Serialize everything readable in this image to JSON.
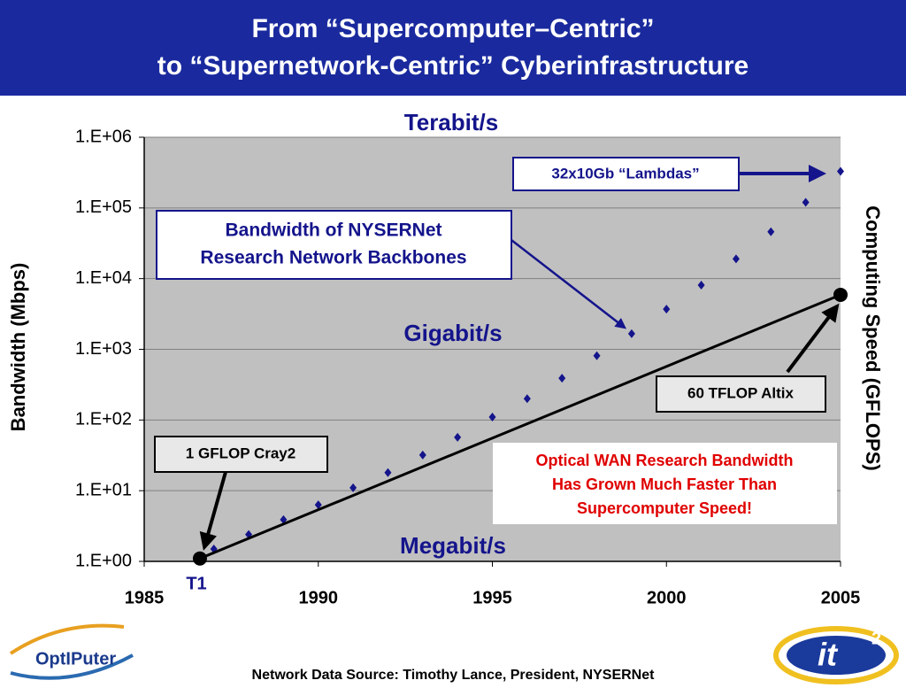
{
  "title": [
    "From “Supercomputer–Centric”",
    "to “Supernetwork-Centric” Cyberinfrastructure"
  ],
  "chart_data": {
    "type": "scatter",
    "y_label": "Bandwidth (Mbps)",
    "y2_label": "Computing Speed (GFLOPS)",
    "log_y": true,
    "grid": true,
    "xlim": [
      1985,
      2005
    ],
    "xticks": [
      1985,
      1990,
      1995,
      2000,
      2005
    ],
    "ylim": [
      1,
      1000000
    ],
    "yticks": [
      {
        "value": 1,
        "label": "1.E+00"
      },
      {
        "value": 10,
        "label": "1.E+01"
      },
      {
        "value": 100,
        "label": "1.E+02"
      },
      {
        "value": 1000,
        "label": "1.E+03"
      },
      {
        "value": 10000,
        "label": "1.E+04"
      },
      {
        "value": 100000,
        "label": "1.E+05"
      },
      {
        "value": 1000000,
        "label": "1.E+06"
      }
    ],
    "series": [
      {
        "type": "scatter",
        "color": "#14148c",
        "x": [
          1987,
          1988,
          1989,
          1990,
          1991,
          1992,
          1993,
          1994,
          1995,
          1996,
          1997,
          1998,
          1999,
          2000,
          2001,
          2002,
          2003,
          2004,
          2005
        ],
        "values": [
          1.5,
          2.4,
          3.9,
          6.3,
          11,
          18,
          32,
          57,
          110,
          200,
          390,
          810,
          1660,
          3700,
          8100,
          19000,
          46000,
          120000,
          330000
        ]
      },
      {
        "type": "line",
        "color": "#000000",
        "x": [
          1986.6,
          2005
        ],
        "values": [
          1.1,
          5900
        ]
      }
    ],
    "zone_labels": [
      "Terabit/s",
      "Gigabit/s",
      "Megabit/s",
      "T1"
    ],
    "annotations": {
      "lambdas": "32x10Gb “Lambdas”",
      "nysernet": [
        "Bandwidth of NYSERNet",
        "Research Network Backbones"
      ],
      "altix": "60 TFLOP Altix",
      "cray": "1 GFLOP Cray2",
      "note": [
        "Optical WAN Research Bandwidth",
        "Has Grown Much Faster Than",
        "Supercomputer Speed!"
      ]
    }
  },
  "footer": "Network Data Source: Timothy Lance, President, NYSERNet",
  "logos": {
    "left": "OptIPuter",
    "right": "it",
    "right_sup": "2"
  }
}
